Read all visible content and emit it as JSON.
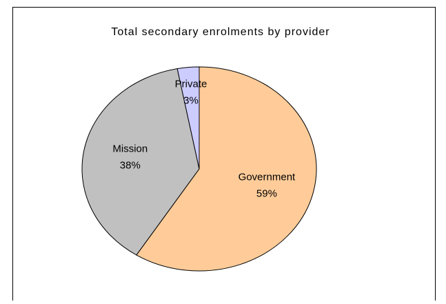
{
  "chart_data": {
    "type": "pie",
    "title": "Total secondary enrolments by provider",
    "categories": [
      "Government",
      "Mission",
      "Private"
    ],
    "values": [
      59,
      38,
      3
    ],
    "value_labels": [
      "59%",
      "38%",
      "3%"
    ],
    "colors": [
      "#ffcc99",
      "#c0c0c0",
      "#ccccff"
    ]
  }
}
